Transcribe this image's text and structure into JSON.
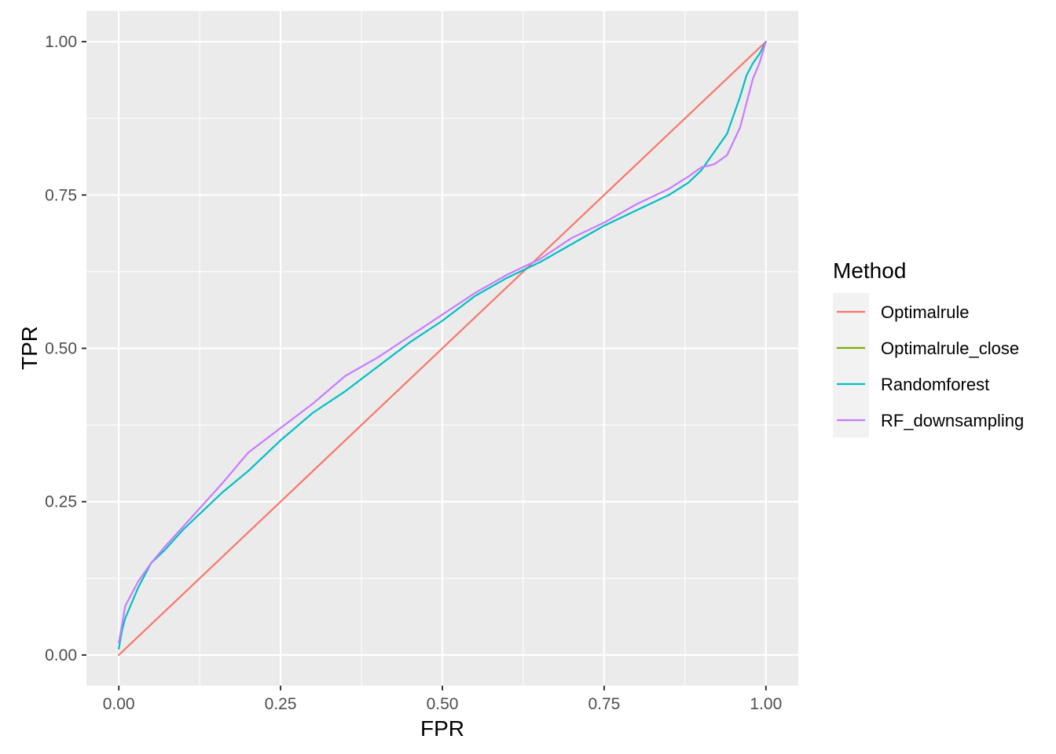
{
  "chart_data": {
    "type": "line",
    "xlabel": "FPR",
    "ylabel": "TPR",
    "xlim": [
      -0.05,
      1.05
    ],
    "ylim": [
      -0.05,
      1.05
    ],
    "x_ticks": [
      0,
      0.25,
      0.5,
      0.75,
      1
    ],
    "y_ticks": [
      0,
      0.25,
      0.5,
      0.75,
      1
    ],
    "x_tick_labels": [
      "0.00",
      "0.25",
      "0.50",
      "0.75",
      "1.00"
    ],
    "y_tick_labels": [
      "0.00",
      "0.25",
      "0.50",
      "0.75",
      "1.00"
    ],
    "grid": true,
    "legend": {
      "title": "Method",
      "position": "right",
      "entries": [
        "Optimalrule",
        "Optimalrule_close",
        "Randomforest",
        "RF_downsampling"
      ]
    },
    "series": [
      {
        "name": "Optimalrule",
        "color": "#F8766D",
        "x": [
          0,
          1
        ],
        "y": [
          0,
          1
        ]
      },
      {
        "name": "Optimalrule_close",
        "color": "#7CAE00",
        "x": [],
        "y": []
      },
      {
        "name": "Randomforest",
        "color": "#00BFC4",
        "x": [
          0,
          0.005,
          0.01,
          0.02,
          0.03,
          0.04,
          0.05,
          0.07,
          0.1,
          0.13,
          0.16,
          0.2,
          0.25,
          0.3,
          0.35,
          0.4,
          0.45,
          0.5,
          0.55,
          0.6,
          0.65,
          0.7,
          0.75,
          0.8,
          0.85,
          0.88,
          0.9,
          0.92,
          0.94,
          0.96,
          0.97,
          0.98,
          0.99,
          1.0
        ],
        "y": [
          0.01,
          0.04,
          0.06,
          0.085,
          0.11,
          0.13,
          0.15,
          0.17,
          0.205,
          0.235,
          0.265,
          0.3,
          0.35,
          0.395,
          0.43,
          0.47,
          0.51,
          0.545,
          0.585,
          0.615,
          0.64,
          0.67,
          0.7,
          0.725,
          0.75,
          0.77,
          0.79,
          0.82,
          0.85,
          0.91,
          0.945,
          0.965,
          0.98,
          1.0
        ]
      },
      {
        "name": "RF_downsampling",
        "color": "#C77CFF",
        "x": [
          0,
          0.005,
          0.01,
          0.02,
          0.03,
          0.04,
          0.05,
          0.07,
          0.1,
          0.13,
          0.16,
          0.2,
          0.25,
          0.3,
          0.35,
          0.4,
          0.45,
          0.5,
          0.55,
          0.6,
          0.65,
          0.7,
          0.75,
          0.8,
          0.85,
          0.88,
          0.9,
          0.92,
          0.94,
          0.96,
          0.97,
          0.98,
          0.99,
          1.0
        ],
        "y": [
          0.02,
          0.05,
          0.08,
          0.1,
          0.12,
          0.135,
          0.15,
          0.175,
          0.21,
          0.245,
          0.28,
          0.33,
          0.37,
          0.41,
          0.455,
          0.485,
          0.52,
          0.555,
          0.59,
          0.62,
          0.645,
          0.68,
          0.705,
          0.735,
          0.76,
          0.78,
          0.795,
          0.8,
          0.815,
          0.86,
          0.9,
          0.94,
          0.965,
          1.0
        ]
      }
    ]
  }
}
